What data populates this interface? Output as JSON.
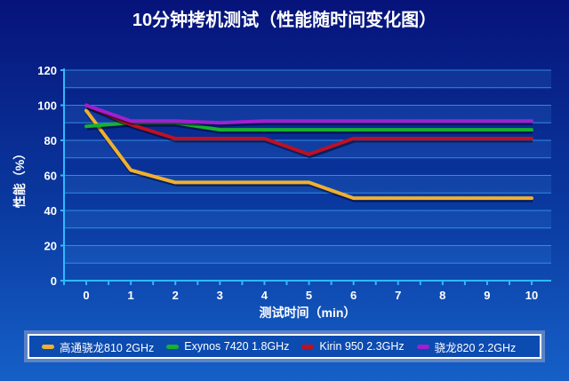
{
  "chart_data": {
    "type": "line",
    "title": "10分钟拷机测试（性能随时间变化图）",
    "xlabel": "测试时间（min）",
    "ylabel": "性能（%）",
    "x": [
      0,
      1,
      2,
      3,
      4,
      5,
      6,
      7,
      8,
      9,
      10
    ],
    "xticks": [
      "0",
      "1",
      "2",
      "3",
      "4",
      "5",
      "6",
      "7",
      "8",
      "9",
      "10"
    ],
    "yticks": [
      "0",
      "20",
      "40",
      "60",
      "80",
      "100",
      "120"
    ],
    "ylim": [
      0,
      120
    ],
    "grid": true,
    "legend_position": "bottom",
    "series": [
      {
        "name": "高通骁龙810 2GHz",
        "color": "#f0b030",
        "values": [
          97,
          63,
          56,
          56,
          56,
          56,
          47,
          47,
          47,
          47,
          47
        ]
      },
      {
        "name": "Exynos 7420 1.8GHz",
        "color": "#18b030",
        "values": [
          88,
          90,
          90,
          86,
          86,
          86,
          86,
          86,
          86,
          86,
          86
        ]
      },
      {
        "name": "Kirin 950 2.3GHz",
        "color": "#c01020",
        "values": [
          100,
          89,
          81,
          81,
          81,
          72,
          81,
          81,
          81,
          81,
          81
        ]
      },
      {
        "name": "骁龙820 2.2GHz",
        "color": "#a020d0",
        "values": [
          100,
          91,
          91,
          90,
          91,
          91,
          91,
          91,
          91,
          91,
          91
        ]
      }
    ]
  }
}
